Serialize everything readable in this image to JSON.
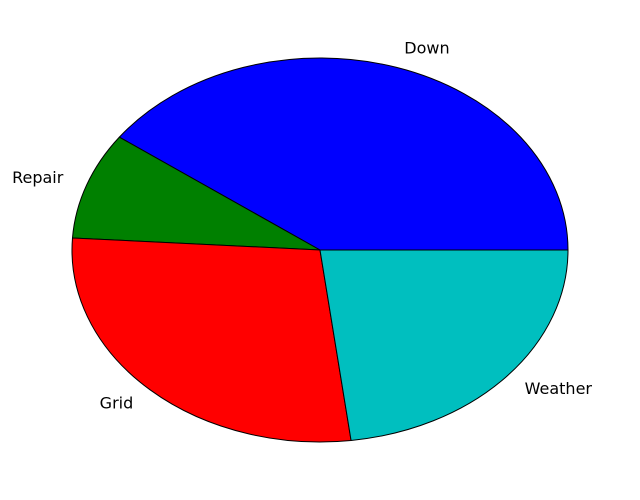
{
  "chart_data": {
    "type": "pie",
    "title": "",
    "start_angle_deg": 0,
    "direction": "counterclockwise",
    "labels": [
      "Down",
      "Repair",
      "Grid",
      "Weather"
    ],
    "values": [
      40,
      9,
      28,
      23
    ],
    "colors": [
      "#0000ff",
      "#008000",
      "#ff0000",
      "#00bfbf"
    ],
    "edge_color": "#000000",
    "legend": "none"
  }
}
